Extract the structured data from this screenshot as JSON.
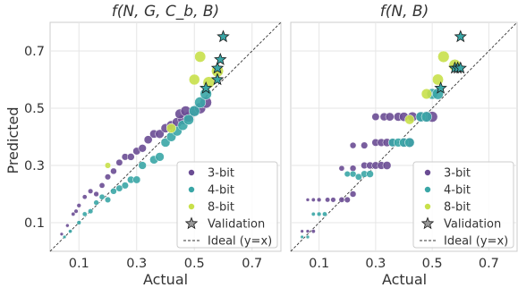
{
  "chart_data": [
    {
      "type": "scatter",
      "title": "f(N, G, C_b, B)",
      "xlabel": "Actual",
      "ylabel": "Predicted",
      "xlim": [
        0.0,
        0.8
      ],
      "ylim": [
        0.0,
        0.8
      ],
      "xticks": [
        "0.1",
        "0.3",
        "0.5",
        "0.7"
      ],
      "yticks": [
        "0.1",
        "0.3",
        "0.5",
        "0.7"
      ],
      "grid": true,
      "legend_position": "lower-right",
      "legend": [
        "3-bit",
        "4-bit",
        "8-bit",
        "Validation",
        "Ideal (y=x)"
      ],
      "colors": {
        "3-bit": "#6a4c93",
        "4-bit": "#3aa6a6",
        "8-bit": "#c8e04a",
        "ideal": "#333333"
      },
      "series": [
        {
          "name": "3-bit",
          "points": [
            [
              0.04,
              0.06
            ],
            [
              0.06,
              0.09
            ],
            [
              0.08,
              0.13
            ],
            [
              0.09,
              0.14
            ],
            [
              0.1,
              0.16
            ],
            [
              0.12,
              0.19
            ],
            [
              0.14,
              0.21
            ],
            [
              0.16,
              0.2
            ],
            [
              0.18,
              0.23
            ],
            [
              0.2,
              0.26
            ],
            [
              0.22,
              0.28
            ],
            [
              0.24,
              0.31
            ],
            [
              0.26,
              0.33
            ],
            [
              0.28,
              0.33
            ],
            [
              0.3,
              0.35
            ],
            [
              0.32,
              0.36
            ],
            [
              0.34,
              0.39
            ],
            [
              0.36,
              0.41
            ],
            [
              0.38,
              0.41
            ],
            [
              0.4,
              0.43
            ],
            [
              0.42,
              0.44
            ],
            [
              0.44,
              0.45
            ],
            [
              0.46,
              0.46
            ],
            [
              0.48,
              0.47
            ],
            [
              0.5,
              0.49
            ],
            [
              0.52,
              0.5
            ],
            [
              0.54,
              0.52
            ],
            [
              0.45,
              0.48
            ],
            [
              0.47,
              0.49
            ]
          ]
        },
        {
          "name": "4-bit",
          "points": [
            [
              0.05,
              0.05
            ],
            [
              0.07,
              0.07
            ],
            [
              0.1,
              0.1
            ],
            [
              0.12,
              0.13
            ],
            [
              0.14,
              0.14
            ],
            [
              0.16,
              0.17
            ],
            [
              0.18,
              0.19
            ],
            [
              0.2,
              0.18
            ],
            [
              0.22,
              0.21
            ],
            [
              0.24,
              0.22
            ],
            [
              0.26,
              0.23
            ],
            [
              0.28,
              0.25
            ],
            [
              0.3,
              0.25
            ],
            [
              0.32,
              0.3
            ],
            [
              0.36,
              0.32
            ],
            [
              0.38,
              0.33
            ],
            [
              0.4,
              0.38
            ],
            [
              0.42,
              0.4
            ],
            [
              0.44,
              0.42
            ],
            [
              0.46,
              0.44
            ],
            [
              0.48,
              0.46
            ],
            [
              0.5,
              0.49
            ],
            [
              0.52,
              0.52
            ],
            [
              0.54,
              0.55
            ]
          ]
        },
        {
          "name": "8-bit",
          "points": [
            [
              0.2,
              0.3
            ],
            [
              0.42,
              0.43
            ],
            [
              0.5,
              0.6
            ],
            [
              0.52,
              0.68
            ],
            [
              0.55,
              0.59
            ],
            [
              0.58,
              0.63
            ]
          ]
        },
        {
          "name": "Validation",
          "points": [
            [
              0.54,
              0.57
            ],
            [
              0.58,
              0.6
            ],
            [
              0.58,
              0.64
            ],
            [
              0.59,
              0.67
            ],
            [
              0.6,
              0.75
            ]
          ]
        }
      ]
    },
    {
      "type": "scatter",
      "title": "f(N, B)",
      "xlabel": "Actual",
      "ylabel": "",
      "xlim": [
        0.0,
        0.8
      ],
      "ylim": [
        0.0,
        0.8
      ],
      "xticks": [
        "0.1",
        "0.3",
        "0.5",
        "0.7"
      ],
      "yticks": [
        "0.1",
        "0.3",
        "0.5",
        "0.7"
      ],
      "grid": true,
      "legend_position": "lower-right",
      "legend": [
        "3-bit",
        "4-bit",
        "8-bit",
        "Validation",
        "Ideal (y=x)"
      ],
      "colors": {
        "3-bit": "#6a4c93",
        "4-bit": "#3aa6a6",
        "8-bit": "#c8e04a",
        "ideal": "#333333"
      },
      "series": [
        {
          "name": "3-bit",
          "points": [
            [
              0.04,
              0.07
            ],
            [
              0.06,
              0.07
            ],
            [
              0.08,
              0.07
            ],
            [
              0.06,
              0.18
            ],
            [
              0.08,
              0.18
            ],
            [
              0.1,
              0.18
            ],
            [
              0.13,
              0.18
            ],
            [
              0.15,
              0.18
            ],
            [
              0.18,
              0.18
            ],
            [
              0.2,
              0.18
            ],
            [
              0.22,
              0.2
            ],
            [
              0.18,
              0.29
            ],
            [
              0.22,
              0.29
            ],
            [
              0.26,
              0.3
            ],
            [
              0.28,
              0.3
            ],
            [
              0.3,
              0.3
            ],
            [
              0.32,
              0.3
            ],
            [
              0.34,
              0.3
            ],
            [
              0.22,
              0.37
            ],
            [
              0.26,
              0.37
            ],
            [
              0.3,
              0.38
            ],
            [
              0.32,
              0.38
            ],
            [
              0.34,
              0.38
            ],
            [
              0.36,
              0.38
            ],
            [
              0.4,
              0.38
            ],
            [
              0.42,
              0.38
            ],
            [
              0.3,
              0.47
            ],
            [
              0.33,
              0.47
            ],
            [
              0.35,
              0.47
            ],
            [
              0.38,
              0.47
            ],
            [
              0.4,
              0.47
            ],
            [
              0.43,
              0.47
            ],
            [
              0.46,
              0.47
            ],
            [
              0.48,
              0.47
            ],
            [
              0.5,
              0.47
            ]
          ]
        },
        {
          "name": "4-bit",
          "points": [
            [
              0.04,
              0.05
            ],
            [
              0.06,
              0.05
            ],
            [
              0.08,
              0.13
            ],
            [
              0.1,
              0.13
            ],
            [
              0.12,
              0.13
            ],
            [
              0.2,
              0.27
            ],
            [
              0.22,
              0.27
            ],
            [
              0.24,
              0.26
            ],
            [
              0.26,
              0.27
            ],
            [
              0.28,
              0.27
            ],
            [
              0.36,
              0.38
            ],
            [
              0.38,
              0.38
            ],
            [
              0.4,
              0.38
            ],
            [
              0.42,
              0.38
            ],
            [
              0.46,
              0.47
            ],
            [
              0.48,
              0.47
            ],
            [
              0.5,
              0.55
            ],
            [
              0.52,
              0.55
            ]
          ]
        },
        {
          "name": "8-bit",
          "points": [
            [
              0.42,
              0.46
            ],
            [
              0.48,
              0.55
            ],
            [
              0.52,
              0.6
            ],
            [
              0.54,
              0.68
            ],
            [
              0.58,
              0.65
            ]
          ]
        },
        {
          "name": "Validation",
          "points": [
            [
              0.53,
              0.57
            ],
            [
              0.58,
              0.64
            ],
            [
              0.59,
              0.64
            ],
            [
              0.6,
              0.64
            ],
            [
              0.6,
              0.75
            ]
          ]
        }
      ]
    }
  ]
}
